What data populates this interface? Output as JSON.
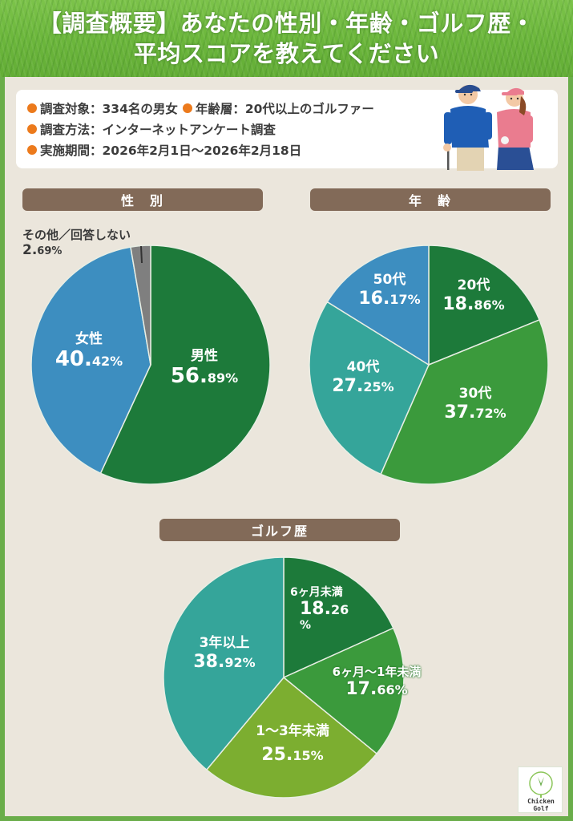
{
  "header": {
    "title_line1": "【調査概要】あなたの性別・年齢・ゴルフ歴・",
    "title_line2": "平均スコアを教えてください"
  },
  "survey_info": {
    "items": [
      {
        "label": "調査対象",
        "value": "334名の男女"
      },
      {
        "label": "年齢層",
        "value": "20代以上のゴルファー"
      },
      {
        "label": "調査方法",
        "value": "インターネットアンケート調査"
      },
      {
        "label": "実施期間",
        "value": "2026年2月1日〜2026年2月18日"
      }
    ],
    "row1": "調査対象：334名の男女",
    "row1b": "年齢層：20代以上のゴルファー",
    "row2": "調査方法：インターネットアンケート調査",
    "row3": "実施期間：2026年2月1日〜2026年2月18日",
    "bullet_color": "#ec7a1c",
    "illustration": "golfer-couple-illustration"
  },
  "logo": {
    "text_line1": "Chicken",
    "text_line2": "Golf"
  },
  "colors": {
    "frame_green": "#6aad4a",
    "panel_bg": "#ebe6dc",
    "section_bar": "#826a58"
  },
  "chart_data": [
    {
      "type": "pie",
      "title": "性　別",
      "categories": [
        "男性",
        "女性",
        "その他／回答しない"
      ],
      "values": [
        56.89,
        40.42,
        2.69
      ],
      "colors": [
        "#1d7a3a",
        "#3d8ec0",
        "#7f7f7f"
      ],
      "start_angle": "12 o'clock, clockwise",
      "labels": [
        {
          "cat": "男性",
          "int": "56.",
          "dec": "89%"
        },
        {
          "cat": "女性",
          "int": "40.",
          "dec": "42%"
        },
        {
          "cat": "その他／回答しない",
          "int": "2.",
          "dec": "69%"
        }
      ]
    },
    {
      "type": "pie",
      "title": "年　齢",
      "categories": [
        "20代",
        "30代",
        "40代",
        "50代"
      ],
      "values": [
        18.86,
        37.72,
        27.25,
        16.17
      ],
      "colors": [
        "#1d7a3a",
        "#3b9a3c",
        "#35a59a",
        "#3d8ec0"
      ],
      "start_angle": "12 o'clock, clockwise",
      "labels": [
        {
          "cat": "20代",
          "int": "18.",
          "dec": "86%"
        },
        {
          "cat": "30代",
          "int": "37.",
          "dec": "72%"
        },
        {
          "cat": "40代",
          "int": "27.",
          "dec": "25%"
        },
        {
          "cat": "50代",
          "int": "16.",
          "dec": "17%"
        }
      ]
    },
    {
      "type": "pie",
      "title": "ゴルフ歴",
      "categories": [
        "6ヶ月未満",
        "6ヶ月〜1年未満",
        "1〜3年未満",
        "3年以上"
      ],
      "values": [
        18.26,
        17.66,
        25.15,
        38.92
      ],
      "colors": [
        "#1d7a3a",
        "#3b9a3c",
        "#7cae30",
        "#35a59a"
      ],
      "start_angle": "12 o'clock, clockwise",
      "labels": [
        {
          "cat": "6ヶ月未満",
          "int": "18.",
          "dec": "26",
          "dec2": "%"
        },
        {
          "cat": "6ヶ月〜1年未満",
          "int": "17.",
          "dec": "66%"
        },
        {
          "cat": "1〜3年未満",
          "int": "25.",
          "dec": "15%"
        },
        {
          "cat": "3年以上",
          "int": "38.",
          "dec": "92%"
        }
      ]
    }
  ]
}
